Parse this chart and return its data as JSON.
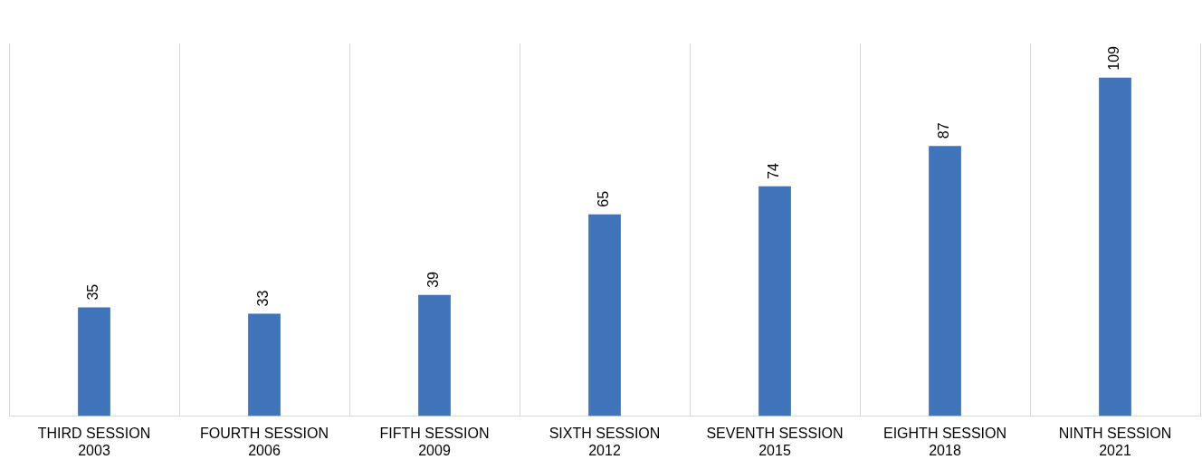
{
  "chart_data": {
    "type": "bar",
    "categories": [
      "THIRD SESSION 2003",
      "FOURTH SESSION 2006",
      "FIFTH SESSION 2009",
      "SIXTH SESSION 2012",
      "SEVENTH SESSION 2015",
      "EIGHTH SESSION 2018",
      "NINTH SESSION 2021"
    ],
    "values": [
      35,
      33,
      39,
      65,
      74,
      87,
      109
    ],
    "color": "#3f73ba",
    "data_labels": true,
    "grid": "x",
    "legend": false
  }
}
